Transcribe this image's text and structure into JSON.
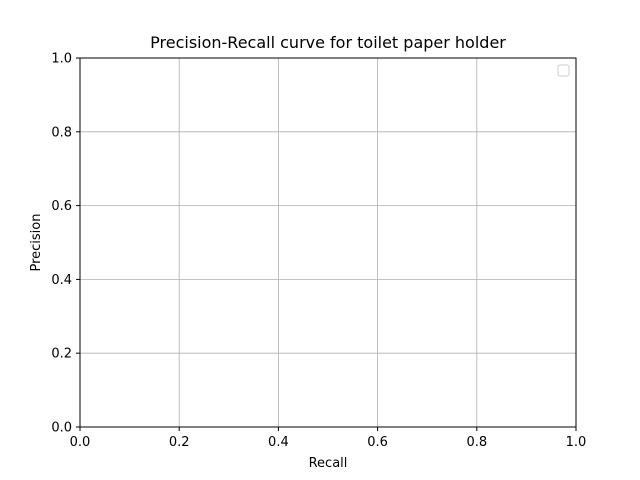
{
  "chart_data": {
    "type": "line",
    "title": "Precision-Recall curve for toilet paper holder",
    "xlabel": "Recall",
    "ylabel": "Precision",
    "xlim": [
      0.0,
      1.0
    ],
    "ylim": [
      0.0,
      1.0
    ],
    "x_ticks": [
      "0.0",
      "0.2",
      "0.4",
      "0.6",
      "0.8",
      "1.0"
    ],
    "y_ticks": [
      "0.0",
      "0.2",
      "0.4",
      "0.6",
      "0.8",
      "1.0"
    ],
    "grid": true,
    "legend_position": "top-right",
    "series": [],
    "colors": {
      "grid": "#b0b0b0",
      "axes": "#000000",
      "background": "#ffffff"
    }
  }
}
